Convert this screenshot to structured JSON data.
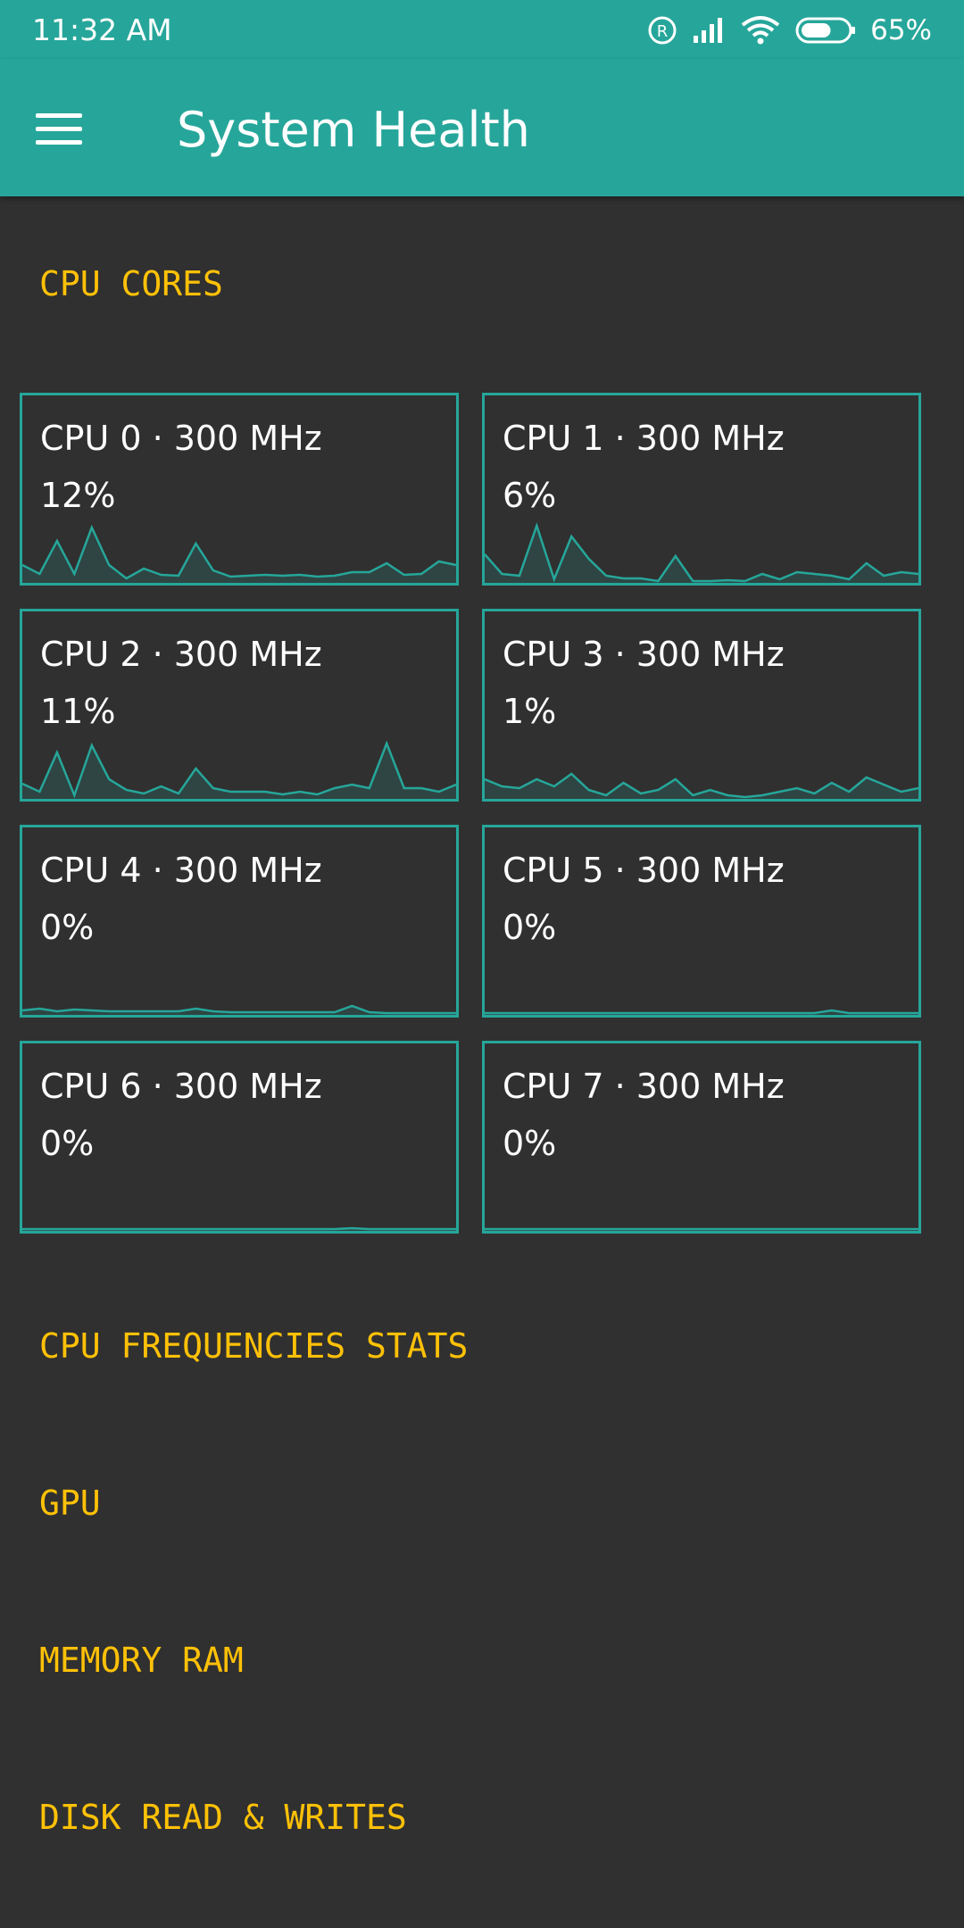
{
  "status_bar": {
    "time": "11:32 AM",
    "battery_percent": "65%",
    "battery_level": 0.65,
    "icons": [
      "registered-icon",
      "signal-icon",
      "wifi-icon",
      "battery-icon"
    ]
  },
  "app_bar": {
    "title": "System Health",
    "menu_icon": "hamburger-menu-icon"
  },
  "sections": {
    "cpu_cores": "CPU CORES",
    "cpu_freq": "CPU FREQUENCIES STATS",
    "gpu": "GPU",
    "memory": "MEMORY RAM",
    "disk": "DISK READ & WRITES"
  },
  "colors": {
    "accent": "#26a69a",
    "section_title": "#ffc107",
    "background": "#303030"
  },
  "cores": [
    {
      "label": "CPU 0 · 300 MHz",
      "usage": "12%",
      "history": [
        18,
        8,
        45,
        8,
        60,
        18,
        3,
        14,
        7,
        6,
        42,
        12,
        5,
        6,
        7,
        6,
        7,
        5,
        6,
        10,
        10,
        20,
        7,
        8,
        22,
        18
      ]
    },
    {
      "label": "CPU 1 · 300 MHz",
      "usage": "6%",
      "history": [
        30,
        8,
        6,
        62,
        2,
        50,
        25,
        6,
        3,
        3,
        0,
        28,
        0,
        0,
        1,
        0,
        8,
        2,
        10,
        8,
        6,
        2,
        20,
        6,
        10,
        8
      ]
    },
    {
      "label": "CPU 2 · 300 MHz",
      "usage": "11%",
      "history": [
        15,
        6,
        50,
        2,
        58,
        20,
        8,
        4,
        12,
        4,
        32,
        10,
        6,
        6,
        6,
        3,
        6,
        3,
        10,
        14,
        10,
        60,
        10,
        10,
        6,
        14
      ]
    },
    {
      "label": "CPU 3 · 300 MHz",
      "usage": "1%",
      "history": [
        20,
        12,
        10,
        20,
        12,
        26,
        8,
        2,
        16,
        4,
        8,
        20,
        2,
        8,
        2,
        0,
        2,
        6,
        10,
        4,
        16,
        6,
        22,
        14,
        6,
        10
      ]
    },
    {
      "label": "CPU 4 · 300 MHz",
      "usage": "0%",
      "history": [
        3,
        5,
        2,
        4,
        3,
        2,
        2,
        2,
        2,
        2,
        5,
        2,
        1,
        1,
        1,
        1,
        1,
        1,
        1,
        8,
        1,
        0,
        0,
        0,
        0,
        0
      ]
    },
    {
      "label": "CPU 5 · 300 MHz",
      "usage": "0%",
      "history": [
        0,
        0,
        0,
        0,
        0,
        0,
        0,
        0,
        0,
        0,
        0,
        0,
        0,
        0,
        0,
        0,
        0,
        0,
        0,
        0,
        3,
        0,
        0,
        0,
        0,
        0
      ]
    },
    {
      "label": "CPU 6 · 300 MHz",
      "usage": "0%",
      "history": [
        0,
        0,
        0,
        0,
        0,
        0,
        0,
        0,
        0,
        0,
        0,
        0,
        0,
        0,
        0,
        0,
        0,
        0,
        0,
        1,
        0,
        0,
        0,
        0,
        0,
        0
      ]
    },
    {
      "label": "CPU 7 · 300 MHz",
      "usage": "0%",
      "history": [
        0,
        0,
        0,
        0,
        0,
        0,
        0,
        0,
        0,
        0,
        0,
        0,
        0,
        0,
        0,
        0,
        0,
        0,
        0,
        0,
        0,
        0,
        0,
        0,
        0,
        0
      ]
    }
  ]
}
